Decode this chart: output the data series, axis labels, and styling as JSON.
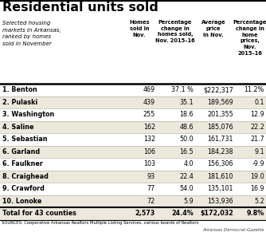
{
  "title": "Residential units sold",
  "col_headers": [
    "Homes\nsold in\nNov.",
    "Percentage\nchange in\nhomes sold,\nNov. 2015–16",
    "Average\nprice\nin Nov.",
    "Percentage\nchange in\nhome\nprices,\nNov.\n2015–16"
  ],
  "rows": [
    [
      "1. Benton",
      "469",
      "37.1 %",
      "$222,317",
      "11.2%"
    ],
    [
      "2. Pulaski",
      "439",
      "35.1",
      "189,569",
      "0.1"
    ],
    [
      "3. Washington",
      "255",
      "18.6",
      "201,355",
      "12.9"
    ],
    [
      "4. Saline",
      "162",
      "48.6",
      "185,076",
      "22.2"
    ],
    [
      "5. Sebastian",
      "132",
      "50.0",
      "161,731",
      "21.7"
    ],
    [
      "6. Garland",
      "106",
      "16.5",
      "184,238",
      "9.1"
    ],
    [
      "6. Faulkner",
      "103",
      "4.0",
      "156,306",
      "-9.9"
    ],
    [
      "8. Craighead",
      "93",
      "22.4",
      "181,610",
      "19.0"
    ],
    [
      "9. Crawford",
      "77",
      "54.0",
      "135,101",
      "16.9"
    ],
    [
      "10. Lonoke",
      "72",
      "5.9",
      "153,936",
      "5.2"
    ]
  ],
  "total_row": [
    "Total for 43 counties",
    "2,573",
    "24.4%",
    "$172,032",
    "9.8%"
  ],
  "sources": "SOURCES: Cooperative Arkansas Realtors Multiple Listing Services, various boards of Realtors",
  "attribution": "Arkansas Democrat-Gazette",
  "shaded_rows": [
    1,
    3,
    5,
    7,
    9
  ],
  "shade_color": "#ede8dc",
  "white_color": "#ffffff",
  "title_color": "#000000"
}
